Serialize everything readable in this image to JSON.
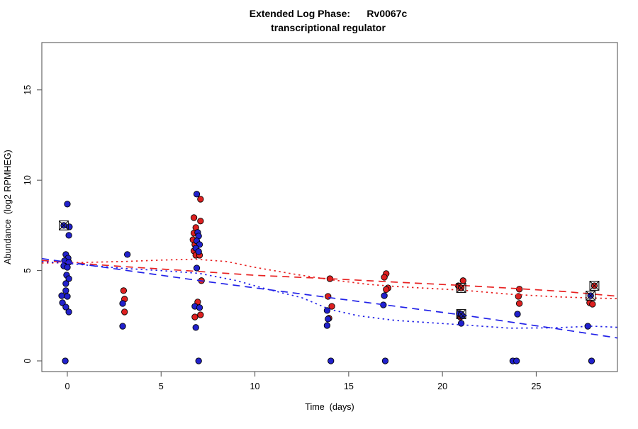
{
  "title": {
    "line1": "Extended Log Phase:      Rv0067c",
    "line2": "transcriptional regulator"
  },
  "chart_data": {
    "type": "scatter",
    "title": "Extended Log Phase: Rv0067c transcriptional regulator",
    "xlabel": "Time  (days)",
    "ylabel": "Abundance  (log2 RPMHEG)",
    "xlim": [
      -1.36,
      29.33
    ],
    "ylim": [
      -0.59,
      17.62
    ],
    "xticks": [
      0,
      5,
      10,
      15,
      20,
      25
    ],
    "yticks": [
      0,
      5,
      10,
      15
    ],
    "grid": false,
    "legend": "none",
    "colors": {
      "red": "#dd2020",
      "blue": "#2121cc",
      "line_red": "#e82222",
      "line_blue": "#2222e8",
      "marker": "#111111"
    },
    "point_series": [
      {
        "name": "condition-red",
        "color_key": "red",
        "points": [
          [
            3.0,
            3.89
          ],
          [
            3.05,
            3.42
          ],
          [
            3.05,
            2.71
          ],
          [
            7.1,
            8.95
          ],
          [
            6.75,
            7.93
          ],
          [
            7.1,
            7.74
          ],
          [
            6.85,
            7.38
          ],
          [
            6.75,
            7.07
          ],
          [
            6.7,
            6.71
          ],
          [
            6.8,
            6.44
          ],
          [
            6.75,
            6.09
          ],
          [
            6.85,
            5.85
          ],
          [
            7.05,
            5.85
          ],
          [
            7.15,
            4.44
          ],
          [
            6.95,
            3.26
          ],
          [
            7.1,
            2.55
          ],
          [
            6.8,
            2.43
          ],
          [
            14.0,
            4.55
          ],
          [
            13.9,
            3.57
          ],
          [
            14.1,
            3.02
          ],
          [
            13.95,
            2.36
          ],
          [
            17.0,
            4.83
          ],
          [
            16.9,
            4.63
          ],
          [
            17.1,
            4.04
          ],
          [
            17.0,
            3.95
          ],
          [
            21.1,
            4.44
          ],
          [
            20.85,
            4.16
          ],
          [
            20.95,
            2.43
          ],
          [
            24.1,
            3.97
          ],
          [
            24.05,
            3.57
          ],
          [
            24.1,
            3.18
          ],
          [
            27.85,
            3.22
          ],
          [
            28.0,
            3.14
          ]
        ]
      },
      {
        "name": "condition-blue",
        "color_key": "blue",
        "points": [
          [
            0.0,
            8.68
          ],
          [
            0.11,
            7.42
          ],
          [
            0.08,
            6.95
          ],
          [
            -0.08,
            5.89
          ],
          [
            0.04,
            5.69
          ],
          [
            -0.15,
            5.54
          ],
          [
            0.08,
            5.46
          ],
          [
            -0.19,
            5.26
          ],
          [
            0.0,
            5.18
          ],
          [
            -0.04,
            4.75
          ],
          [
            0.08,
            4.55
          ],
          [
            -0.08,
            4.28
          ],
          [
            -0.08,
            3.89
          ],
          [
            -0.3,
            3.61
          ],
          [
            0.0,
            3.57
          ],
          [
            -0.26,
            3.22
          ],
          [
            -0.08,
            2.98
          ],
          [
            0.08,
            2.71
          ],
          [
            -0.11,
            0.0
          ],
          [
            3.2,
            5.89
          ],
          [
            2.95,
            3.18
          ],
          [
            2.95,
            1.92
          ],
          [
            6.9,
            9.23
          ],
          [
            6.95,
            7.11
          ],
          [
            7.0,
            6.91
          ],
          [
            6.9,
            6.64
          ],
          [
            7.05,
            6.44
          ],
          [
            6.85,
            6.24
          ],
          [
            7.0,
            6.05
          ],
          [
            6.9,
            5.14
          ],
          [
            6.8,
            3.02
          ],
          [
            7.05,
            2.95
          ],
          [
            6.85,
            1.85
          ],
          [
            7.0,
            0.0
          ],
          [
            13.85,
            2.79
          ],
          [
            13.9,
            2.32
          ],
          [
            13.85,
            1.96
          ],
          [
            14.05,
            0.0
          ],
          [
            16.9,
            3.61
          ],
          [
            16.85,
            3.1
          ],
          [
            16.95,
            0.0
          ],
          [
            20.9,
            2.63
          ],
          [
            21.05,
            2.51
          ],
          [
            21.0,
            2.08
          ],
          [
            24.0,
            2.59
          ],
          [
            23.75,
            0.0
          ],
          [
            23.95,
            0.0
          ],
          [
            27.75,
            1.92
          ],
          [
            27.95,
            0.0
          ]
        ]
      }
    ],
    "flagged_points": [
      {
        "x": -0.19,
        "y": 7.5,
        "color_key": "blue"
      },
      {
        "x": 21.0,
        "y": 4.04,
        "color_key": "red"
      },
      {
        "x": 21.0,
        "y": 2.59,
        "color_key": "blue"
      },
      {
        "x": 28.1,
        "y": 4.16,
        "color_key": "red"
      },
      {
        "x": 27.9,
        "y": 3.61,
        "color_key": "blue"
      }
    ],
    "trend_lines": [
      {
        "name": "red-longdash",
        "color_key": "line_red",
        "dash": "longdash",
        "points": [
          [
            -1.36,
            5.56
          ],
          [
            0,
            5.45
          ],
          [
            3,
            5.22
          ],
          [
            7,
            4.95
          ],
          [
            10,
            4.74
          ],
          [
            14,
            4.55
          ],
          [
            17.5,
            4.36
          ],
          [
            21,
            4.18
          ],
          [
            24,
            4.0
          ],
          [
            26.5,
            3.84
          ],
          [
            28,
            3.7
          ],
          [
            29.33,
            3.58
          ]
        ]
      },
      {
        "name": "red-dotted",
        "color_key": "line_red",
        "dash": "dotted",
        "points": [
          [
            -1.36,
            5.42
          ],
          [
            0,
            5.43
          ],
          [
            3,
            5.5
          ],
          [
            5,
            5.58
          ],
          [
            6.8,
            5.63
          ],
          [
            8.5,
            5.5
          ],
          [
            10,
            5.18
          ],
          [
            12,
            4.82
          ],
          [
            14,
            4.5
          ],
          [
            16,
            4.24
          ],
          [
            17.5,
            4.12
          ],
          [
            19,
            4.03
          ],
          [
            21,
            3.92
          ],
          [
            23.6,
            3.69
          ],
          [
            26,
            3.55
          ],
          [
            28,
            3.48
          ],
          [
            29.33,
            3.45
          ]
        ]
      },
      {
        "name": "blue-longdash",
        "color_key": "line_blue",
        "dash": "longdash",
        "points": [
          [
            -1.36,
            5.66
          ],
          [
            7,
            4.45
          ],
          [
            14,
            3.5
          ],
          [
            21,
            2.55
          ],
          [
            26.6,
            1.7
          ],
          [
            29.33,
            1.27
          ]
        ]
      },
      {
        "name": "blue-dotted",
        "color_key": "line_blue",
        "dash": "dotted",
        "points": [
          [
            -1.36,
            5.5
          ],
          [
            0,
            5.4
          ],
          [
            3,
            5.12
          ],
          [
            5,
            5.0
          ],
          [
            7,
            4.85
          ],
          [
            9,
            4.45
          ],
          [
            10.65,
            3.97
          ],
          [
            12.5,
            3.5
          ],
          [
            14,
            2.85
          ],
          [
            15.5,
            2.5
          ],
          [
            17.5,
            2.24
          ],
          [
            21,
            2.0
          ],
          [
            23.6,
            1.81
          ],
          [
            26,
            1.83
          ],
          [
            28,
            1.92
          ],
          [
            29.33,
            1.86
          ]
        ]
      }
    ]
  }
}
